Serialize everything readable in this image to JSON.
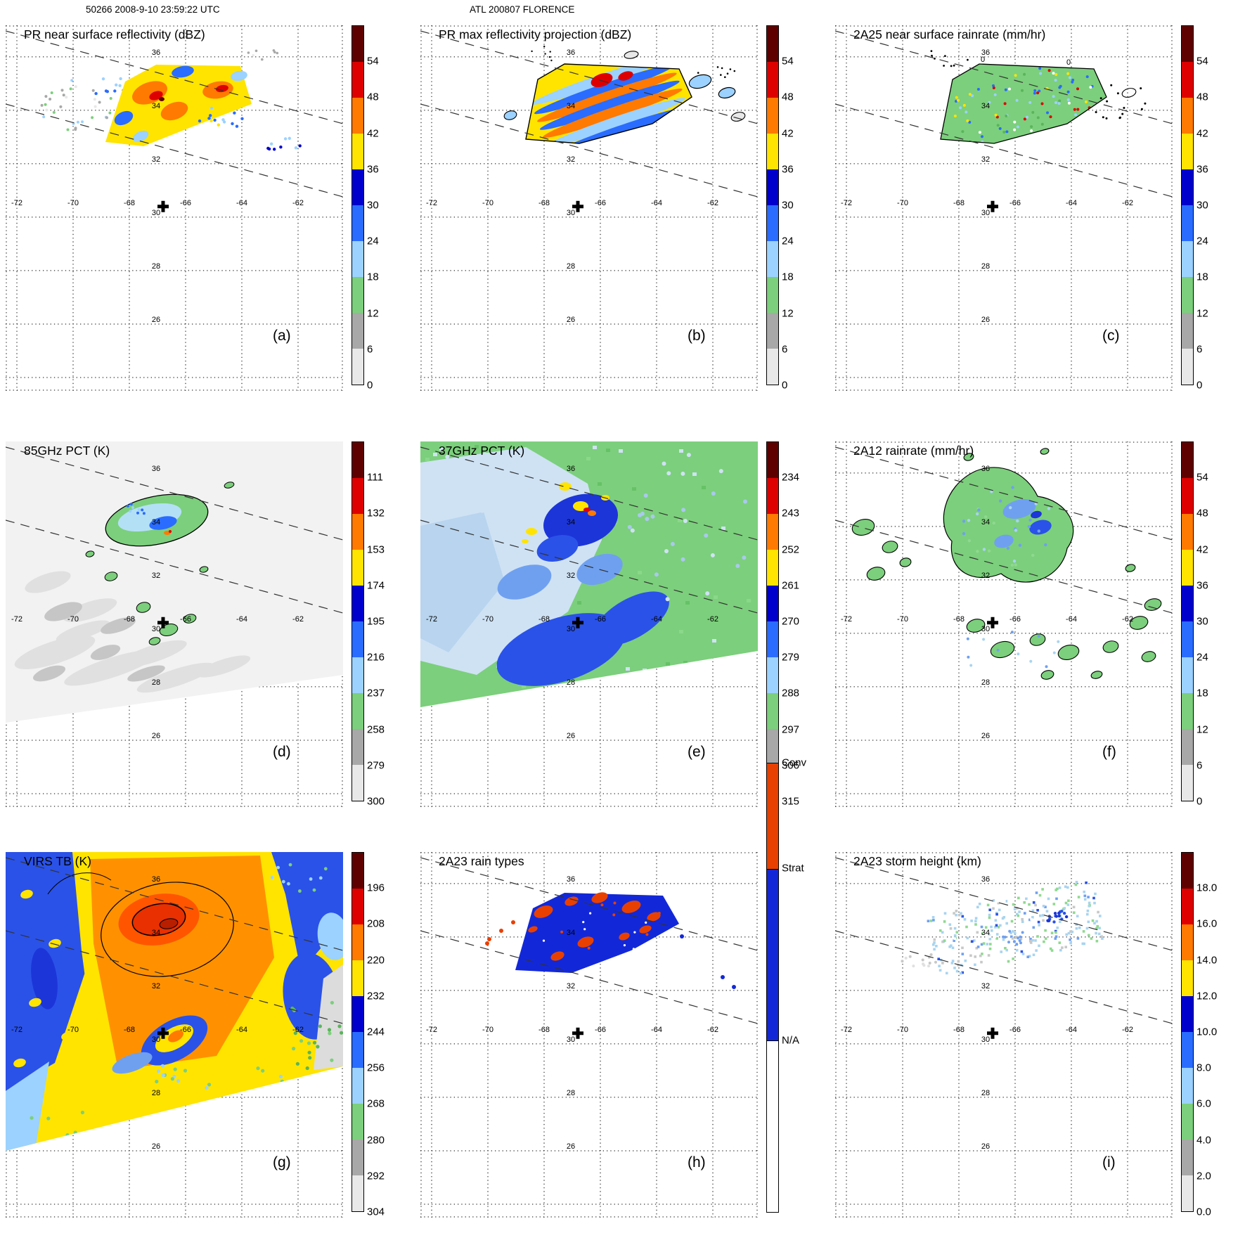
{
  "figure_header": {
    "left": "50266 2008-9-10 23:59:22 UTC",
    "center": "ATL 200807 FLORENCE"
  },
  "axes": {
    "lon_labels": [
      "-72",
      "-70",
      "-68",
      "-66",
      "-64",
      "-62"
    ],
    "lon_values": [
      -72,
      -70,
      -68,
      -66,
      -64,
      -62
    ],
    "lat_labels": [
      "36",
      "34",
      "32",
      "30",
      "28",
      "26"
    ],
    "lat_values": [
      36,
      34,
      32,
      30,
      28,
      26
    ],
    "grid_extra_lat": 24,
    "lon_range": [
      -72.4,
      -60.4
    ],
    "lat_range": [
      23.5,
      37.18
    ],
    "marker": {
      "lon": -66.8,
      "lat": 30.4
    }
  },
  "palettes": {
    "standard": [
      "#5e0000",
      "#de0000",
      "#ff7a00",
      "#ffe400",
      "#0000cd",
      "#2a6cff",
      "#9cd2ff",
      "#7ccf7c",
      "#a8a8a8",
      "#e8e8e8"
    ],
    "rain_types": {
      "conv": "#e84000",
      "strat": "#1228d8",
      "na": "#ffffff"
    }
  },
  "chart_data": [
    {
      "type": "heatmap",
      "id": "a",
      "letter": "(a)",
      "title": "PR near surface reflectivity (dBZ)",
      "art": "pr_reflectivity",
      "colorbar": {
        "style": "ticks",
        "ticks": [
          "54",
          "48",
          "42",
          "36",
          "30",
          "24",
          "18",
          "12",
          "6",
          "0"
        ]
      }
    },
    {
      "type": "heatmap",
      "id": "b",
      "letter": "(b)",
      "title": "PR max reflectivity projection (dBZ)",
      "art": "pr_max",
      "colorbar": {
        "style": "ticks",
        "ticks": [
          "54",
          "48",
          "42",
          "36",
          "30",
          "24",
          "18",
          "12",
          "6",
          "0"
        ]
      }
    },
    {
      "type": "heatmap",
      "id": "c",
      "letter": "(c)",
      "title": "2A25 near surface rainrate (mm/hr)",
      "art": "rain_2a25",
      "contour_labels": [
        "0",
        "0"
      ],
      "colorbar": {
        "style": "ticks",
        "ticks": [
          "54",
          "48",
          "42",
          "36",
          "30",
          "24",
          "18",
          "12",
          "6",
          "0"
        ]
      }
    },
    {
      "type": "heatmap",
      "id": "d",
      "letter": "(d)",
      "title": "85GHz PCT (K)",
      "art": "pct85",
      "colorbar": {
        "style": "ticks",
        "ticks": [
          "111",
          "132",
          "153",
          "174",
          "195",
          "216",
          "237",
          "258",
          "279",
          "300"
        ]
      }
    },
    {
      "type": "heatmap",
      "id": "e",
      "letter": "(e)",
      "title": "37GHz PCT (K)",
      "art": "pct37",
      "colorbar": {
        "style": "ticks",
        "ticks": [
          "234",
          "243",
          "252",
          "261",
          "270",
          "279",
          "288",
          "297",
          "306",
          "315"
        ]
      }
    },
    {
      "type": "heatmap",
      "id": "f",
      "letter": "(f)",
      "title": "2A12 rainrate (mm/hr)",
      "art": "rain_2a12",
      "colorbar": {
        "style": "ticks",
        "ticks": [
          "54",
          "48",
          "42",
          "36",
          "30",
          "24",
          "18",
          "12",
          "6",
          "0"
        ]
      }
    },
    {
      "type": "heatmap",
      "id": "g",
      "letter": "(g)",
      "title": "VIRS TB (K)",
      "art": "virs",
      "colorbar": {
        "style": "ticks",
        "ticks": [
          "196",
          "208",
          "220",
          "232",
          "244",
          "256",
          "268",
          "280",
          "292",
          "304"
        ]
      }
    },
    {
      "type": "heatmap",
      "id": "h",
      "letter": "(h)",
      "title": "2A23 rain types",
      "art": "rain_types",
      "colorbar": {
        "style": "segments",
        "tall": true,
        "segments": [
          {
            "label": "Conv",
            "color": "#e84000",
            "frac": 0.235
          },
          {
            "label": "Strat",
            "color": "#1228d8",
            "frac": 0.382
          },
          {
            "label": "N/A",
            "color": "#ffffff",
            "frac": 0.383
          }
        ]
      }
    },
    {
      "type": "heatmap",
      "id": "i",
      "letter": "(i)",
      "title": "2A23 storm height (km)",
      "art": "storm_height",
      "colorbar": {
        "style": "ticks",
        "ticks": [
          "18.0",
          "16.0",
          "14.0",
          "12.0",
          "10.0",
          "8.0",
          "6.0",
          "4.0",
          "2.0",
          "0.0"
        ]
      }
    }
  ]
}
